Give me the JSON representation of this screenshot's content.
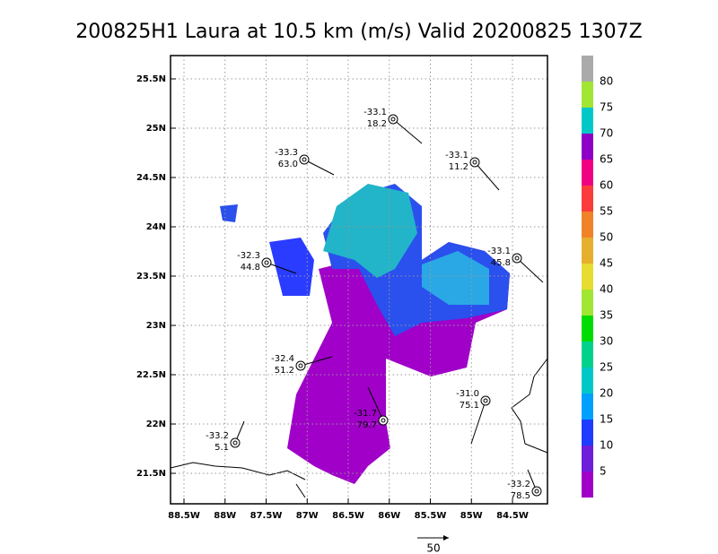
{
  "title": "200825H1 Laura at 10.5 km (m/s) Valid 20200825 1307Z",
  "lon_ticks": [
    "88.5W",
    "88W",
    "87.5W",
    "87W",
    "86.5W",
    "86W",
    "85.5W",
    "85W",
    "84.5W"
  ],
  "lat_ticks": [
    "25.5N",
    "25N",
    "24.5N",
    "24N",
    "23.5N",
    "23N",
    "22.5N",
    "22N",
    "21.5N"
  ],
  "colorbar": {
    "labels": [
      "5",
      "10",
      "15",
      "20",
      "25",
      "30",
      "35",
      "40",
      "45",
      "50",
      "55",
      "60",
      "65",
      "70",
      "75",
      "80"
    ],
    "colors": [
      "#a000c8",
      "#6e1ed8",
      "#1e3cff",
      "#00a0ff",
      "#00c8c8",
      "#00d28c",
      "#00dc00",
      "#a0e632",
      "#e6dc32",
      "#e6af2d",
      "#f08228",
      "#fa3c3c",
      "#f00082",
      "#8c00c8",
      "#00c8c8",
      "#a0e632",
      "#aaaaaa"
    ]
  },
  "stations": [
    {
      "temp": "-33.1",
      "wind": "18.2"
    },
    {
      "temp": "-33.3",
      "wind": "63.0"
    },
    {
      "temp": "-33.1",
      "wind": "11.2"
    },
    {
      "temp": "-32.3",
      "wind": "44.8"
    },
    {
      "temp": "-33.1",
      "wind": "45.8"
    },
    {
      "temp": "-32.4",
      "wind": "51.2"
    },
    {
      "temp": "-31.0",
      "wind": "75.1"
    },
    {
      "temp": "-31.7",
      "wind": "79.7"
    },
    {
      "temp": "-33.2",
      "wind": "5.1"
    },
    {
      "temp": "-33.2",
      "wind": "78.5"
    }
  ],
  "reference_vector": "50"
}
